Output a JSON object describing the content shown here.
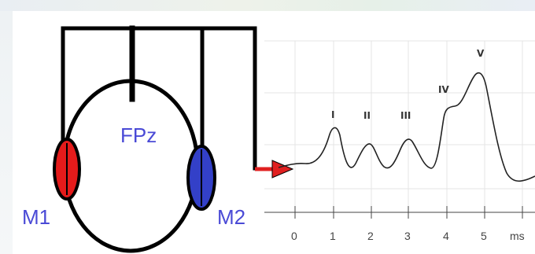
{
  "electrodes": {
    "top": "FPz",
    "left": "M1",
    "right": "M2"
  },
  "colors": {
    "left_electrode": "#e51b1b",
    "right_electrode": "#3340c8",
    "arrow": "#e02020",
    "label_text": "#4a4ad6",
    "wire": "#000000"
  },
  "waveform": {
    "peaks": [
      "I",
      "II",
      "III",
      "IV",
      "V"
    ],
    "ticks": [
      "0",
      "1",
      "2",
      "3",
      "4",
      "5"
    ],
    "unit": "ms"
  }
}
